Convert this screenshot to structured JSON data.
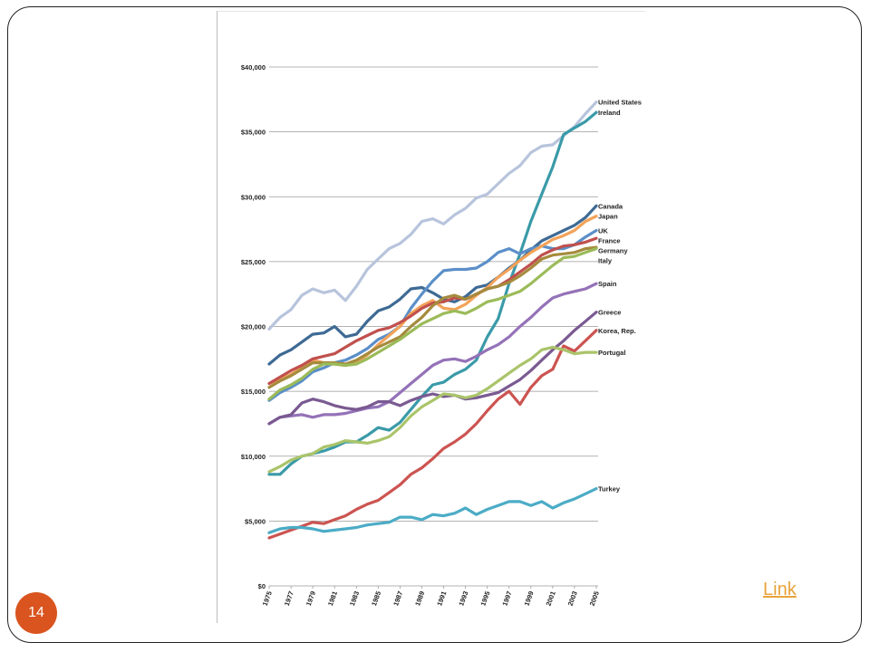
{
  "slide": {
    "page_number": "14",
    "link_label": "Link"
  },
  "chart_data": {
    "type": "line",
    "title": "",
    "xlabel": "",
    "ylabel": "",
    "ylim": [
      0,
      40000
    ],
    "grid": true,
    "x": [
      1975,
      1976,
      1977,
      1978,
      1979,
      1980,
      1981,
      1982,
      1983,
      1984,
      1985,
      1986,
      1987,
      1988,
      1989,
      1990,
      1991,
      1992,
      1993,
      1994,
      1995,
      1996,
      1997,
      1998,
      1999,
      2000,
      2001,
      2002,
      2003,
      2004,
      2005
    ],
    "x_tick_labels": [
      "1975",
      "1977",
      "1979",
      "1981",
      "1983",
      "1985",
      "1987",
      "1989",
      "1991",
      "1993",
      "1995",
      "1997",
      "1999",
      "2001",
      "2003",
      "2005"
    ],
    "y_ticks": [
      0,
      5000,
      10000,
      15000,
      20000,
      25000,
      30000,
      35000,
      40000
    ],
    "y_tick_labels": [
      "$0",
      "$5,000",
      "$10,000",
      "$15,000",
      "$20,000",
      "$25,000",
      "$30,000",
      "$35,000",
      "$40,000"
    ],
    "series": [
      {
        "name": "United States",
        "color": "#b7c4dc",
        "values": [
          19800,
          20700,
          21300,
          22400,
          22900,
          22600,
          22800,
          22000,
          23100,
          24400,
          25200,
          26000,
          26400,
          27100,
          28100,
          28300,
          27900,
          28600,
          29100,
          29900,
          30200,
          31000,
          31800,
          32400,
          33400,
          33900,
          34000,
          34700,
          35400,
          36400,
          37300
        ]
      },
      {
        "name": "Ireland",
        "color": "#3a9aa8",
        "values": [
          8600,
          8600,
          9400,
          10000,
          10200,
          10400,
          10700,
          11100,
          11100,
          11600,
          12200,
          12000,
          12600,
          13600,
          14600,
          15500,
          15700,
          16300,
          16700,
          17400,
          19200,
          20600,
          23300,
          25600,
          28100,
          30200,
          32300,
          34800,
          35300,
          35800,
          36500
        ]
      },
      {
        "name": "Canada",
        "color": "#3e6a94",
        "values": [
          17100,
          17800,
          18200,
          18800,
          19400,
          19500,
          20000,
          19200,
          19400,
          20400,
          21200,
          21500,
          22100,
          22900,
          23000,
          22600,
          22100,
          21900,
          22300,
          23000,
          23200,
          23800,
          24500,
          25100,
          25900,
          26600,
          27000,
          27400,
          27800,
          28400,
          29300
        ]
      },
      {
        "name": "UK",
        "color": "#5b8fc8",
        "values": [
          14300,
          14900,
          15300,
          15800,
          16500,
          16800,
          17200,
          17400,
          17800,
          18300,
          19000,
          19400,
          20000,
          21400,
          22500,
          23500,
          24300,
          24400,
          24400,
          24500,
          25000,
          25700,
          26000,
          25600,
          26000,
          26200,
          26000,
          26000,
          26300,
          26900,
          27400
        ]
      },
      {
        "name": "Japan",
        "color": "#f3a35a",
        "values": [
          15600,
          15900,
          16300,
          16800,
          17400,
          17200,
          17100,
          17000,
          17200,
          17800,
          18600,
          19300,
          20000,
          21000,
          21600,
          22000,
          21400,
          21300,
          21700,
          22400,
          23000,
          23800,
          24400,
          25100,
          25700,
          26200,
          26700,
          27000,
          27400,
          28100,
          28500
        ]
      },
      {
        "name": "France",
        "color": "#c0504d",
        "values": [
          15600,
          16100,
          16600,
          17000,
          17500,
          17700,
          17900,
          18400,
          18900,
          19300,
          19700,
          19900,
          20300,
          20800,
          21400,
          21800,
          21900,
          22200,
          22100,
          22500,
          22900,
          23100,
          23600,
          24200,
          24800,
          25500,
          25900,
          26200,
          26300,
          26500,
          26800
        ]
      },
      {
        "name": "Germany",
        "color": "#a58b3d",
        "values": [
          15300,
          15800,
          16200,
          16700,
          17200,
          17200,
          17200,
          17100,
          17400,
          17900,
          18400,
          18800,
          19200,
          20000,
          20700,
          21600,
          22200,
          22400,
          22100,
          22500,
          22900,
          23100,
          23400,
          23900,
          24500,
          25200,
          25500,
          25600,
          25700,
          26000,
          26100
        ]
      },
      {
        "name": "Italy",
        "color": "#9bbb59",
        "values": [
          14400,
          15100,
          15500,
          16000,
          16700,
          17100,
          17100,
          17000,
          17100,
          17500,
          18000,
          18500,
          19000,
          19600,
          20200,
          20600,
          21000,
          21200,
          21000,
          21400,
          21900,
          22100,
          22400,
          22700,
          23300,
          24000,
          24700,
          25300,
          25400,
          25700,
          26000
        ]
      },
      {
        "name": "Spain",
        "color": "#9472b8",
        "values": [
          12500,
          13000,
          13100,
          13200,
          13000,
          13200,
          13200,
          13300,
          13500,
          13700,
          13800,
          14200,
          14900,
          15600,
          16300,
          17000,
          17400,
          17500,
          17300,
          17700,
          18200,
          18600,
          19200,
          20000,
          20700,
          21500,
          22200,
          22500,
          22700,
          22900,
          23300
        ]
      },
      {
        "name": "Greece",
        "color": "#7a5a92",
        "values": [
          12500,
          13000,
          13200,
          14100,
          14400,
          14200,
          13900,
          13700,
          13600,
          13800,
          14200,
          14200,
          13900,
          14300,
          14600,
          14800,
          14600,
          14700,
          14400,
          14500,
          14700,
          14900,
          15400,
          15900,
          16600,
          17400,
          18200,
          18900,
          19700,
          20400,
          21100
        ]
      },
      {
        "name": "Korea, Rep.",
        "color": "#cc5451",
        "values": [
          3700,
          4000,
          4300,
          4600,
          4900,
          4800,
          5100,
          5400,
          5900,
          6300,
          6600,
          7200,
          7800,
          8600,
          9100,
          9800,
          10600,
          11100,
          11700,
          12500,
          13500,
          14400,
          15000,
          14000,
          15300,
          16200,
          16700,
          18500,
          18100,
          18900,
          19700
        ]
      },
      {
        "name": "Portugal",
        "color": "#aac46a",
        "values": [
          8800,
          9200,
          9700,
          10000,
          10200,
          10700,
          10900,
          11200,
          11100,
          11000,
          11200,
          11500,
          12200,
          13100,
          13800,
          14300,
          14800,
          14700,
          14500,
          14700,
          15200,
          15800,
          16400,
          17000,
          17500,
          18200,
          18400,
          18200,
          17900,
          18000,
          18000
        ]
      },
      {
        "name": "Turkey",
        "color": "#4bacc6",
        "values": [
          4100,
          4400,
          4500,
          4500,
          4400,
          4200,
          4300,
          4400,
          4500,
          4700,
          4800,
          4900,
          5300,
          5300,
          5100,
          5500,
          5400,
          5600,
          6000,
          5500,
          5900,
          6200,
          6500,
          6500,
          6200,
          6500,
          6000,
          6400,
          6700,
          7100,
          7500
        ]
      }
    ]
  }
}
